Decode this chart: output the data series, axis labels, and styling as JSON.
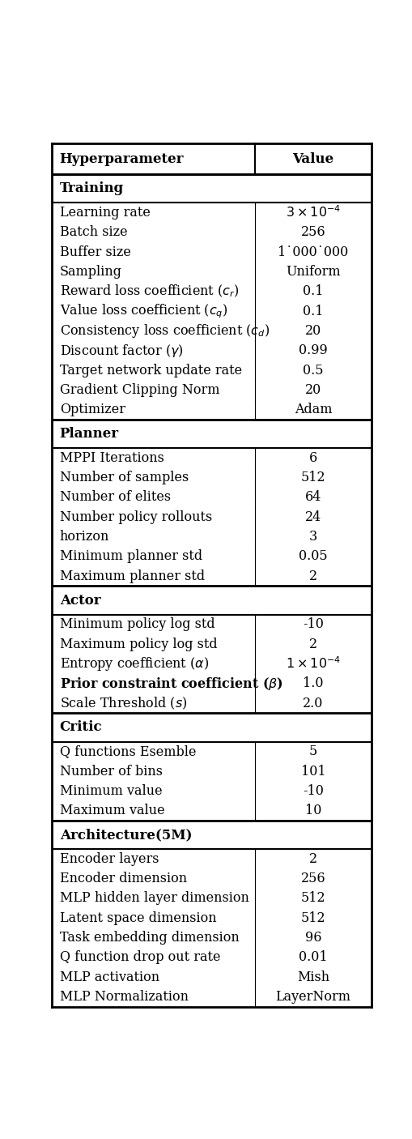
{
  "col_split": 0.635,
  "sections": [
    {
      "header": "Training",
      "rows": [
        {
          "param": "Learning rate",
          "value": "$3 \\times 10^{-4}$",
          "bold_param": false
        },
        {
          "param": "Batch size",
          "value": "256",
          "bold_param": false
        },
        {
          "param": "Buffer size",
          "value": "1˙000˙000",
          "bold_param": false
        },
        {
          "param": "Sampling",
          "value": "Uniform",
          "bold_param": false
        },
        {
          "param": "Reward loss coefficient ($c_r$)",
          "value": "0.1",
          "bold_param": false
        },
        {
          "param": "Value loss coefficient ($c_q$)",
          "value": "0.1",
          "bold_param": false
        },
        {
          "param": "Consistency loss coefficient ($c_d$)",
          "value": "20",
          "bold_param": false
        },
        {
          "param": "Discount factor ($\\gamma$)",
          "value": "0.99",
          "bold_param": false
        },
        {
          "param": "Target network update rate",
          "value": "0.5",
          "bold_param": false
        },
        {
          "param": "Gradient Clipping Norm",
          "value": "20",
          "bold_param": false
        },
        {
          "param": "Optimizer",
          "value": "Adam",
          "bold_param": false
        }
      ]
    },
    {
      "header": "Planner",
      "rows": [
        {
          "param": "MPPI Iterations",
          "value": "6",
          "bold_param": false
        },
        {
          "param": "Number of samples",
          "value": "512",
          "bold_param": false
        },
        {
          "param": "Number of elites",
          "value": "64",
          "bold_param": false
        },
        {
          "param": "Number policy rollouts",
          "value": "24",
          "bold_param": false
        },
        {
          "param": "horizon",
          "value": "3",
          "bold_param": false
        },
        {
          "param": "Minimum planner std",
          "value": "0.05",
          "bold_param": false
        },
        {
          "param": "Maximum planner std",
          "value": "2",
          "bold_param": false
        }
      ]
    },
    {
      "header": "Actor",
      "rows": [
        {
          "param": "Minimum policy log std",
          "value": "-10",
          "bold_param": false
        },
        {
          "param": "Maximum policy log std",
          "value": "2",
          "bold_param": false
        },
        {
          "param": "Entropy coefficient ($\\alpha$)",
          "value": "$1 \\times 10^{-4}$",
          "bold_param": false
        },
        {
          "param": "Prior constraint coefficient ($\\beta$)",
          "value": "1.0",
          "bold_param": true
        },
        {
          "param": "Scale Threshold ($s$)",
          "value": "2.0",
          "bold_param": false
        }
      ]
    },
    {
      "header": "Critic",
      "rows": [
        {
          "param": "Q functions Esemble",
          "value": "5",
          "bold_param": false
        },
        {
          "param": "Number of bins",
          "value": "101",
          "bold_param": false
        },
        {
          "param": "Minimum value",
          "value": "-10",
          "bold_param": false
        },
        {
          "param": "Maximum value",
          "value": "10",
          "bold_param": false
        }
      ]
    },
    {
      "header": "Architecture(5M)",
      "rows": [
        {
          "param": "Encoder layers",
          "value": "2",
          "bold_param": false
        },
        {
          "param": "Encoder dimension",
          "value": "256",
          "bold_param": false
        },
        {
          "param": "MLP hidden layer dimension",
          "value": "512",
          "bold_param": false
        },
        {
          "param": "Latent space dimension",
          "value": "512",
          "bold_param": false
        },
        {
          "param": "Task embedding dimension",
          "value": "96",
          "bold_param": false
        },
        {
          "param": "Q function drop out rate",
          "value": "0.01",
          "bold_param": false
        },
        {
          "param": "MLP activation",
          "value": "Mish",
          "bold_param": false
        },
        {
          "param": "MLP Normalization",
          "value": "LayerNorm",
          "bold_param": false
        }
      ]
    }
  ],
  "header_param": "Hyperparameter",
  "header_value": "Value",
  "font_size": 11.5,
  "header_font_size": 12
}
